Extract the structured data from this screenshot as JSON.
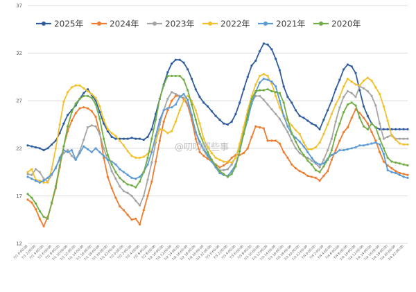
{
  "watermark": "@叨叨那些事",
  "chart_data": {
    "type": "line",
    "ylim": [
      12,
      37
    ],
    "yticks": [
      12,
      17,
      22,
      27,
      32,
      37
    ],
    "grid": true,
    "legend": "top",
    "x": [
      "7/1 0:00:00",
      "7/1 1:00:00",
      "7/1 2:00:00",
      "7/1 3:00:00",
      "7/1 4:00:00",
      "7/1 5:00:00",
      "7/1 6:00:00",
      "7/1 7:00:00",
      "7/1 8:00:00",
      "7/1 9:00:00",
      "7/1 10:00:00",
      "7/1 11:00:00",
      "7/1 12:00:00",
      "7/1 13:00:00",
      "7/1 14:00:00",
      "7/1 15:00:00",
      "7/1 16:00:00",
      "7/1 17:00:00",
      "7/1 18:00:00",
      "7/1 19:00:00",
      "7/1 20:00:00",
      "7/1 21:00:00",
      "7/1 22:00:00",
      "7/1 23:00:00",
      "7/2 0:00:00",
      "7/2 1:00:00",
      "7/2 2:00:00",
      "7/2 3:00:00",
      "7/2 4:00:00",
      "7/2 5:00:00",
      "7/2 6:00:00",
      "7/2 7:00:00",
      "7/2 8:00:00",
      "7/2 9:00:00",
      "7/2 10:00:00",
      "7/2 11:00:00",
      "7/2 12:00:00",
      "7/2 13:00:00",
      "7/2 14:00:00",
      "7/2 15:00:00",
      "7/2 16:00:00",
      "7/2 17:00:00",
      "7/2 18:00:00",
      "7/2 19:00:00",
      "7/2 20:00:00",
      "7/2 21:00:00",
      "7/2 22:00:00",
      "7/2 23:00:00",
      "7/3 0:00:00",
      "7/3 1:00:00",
      "7/3 2:00:00",
      "7/3 3:00:00",
      "7/3 4:00:00",
      "7/3 5:00:00",
      "7/3 6:00:00",
      "7/3 7:00:00",
      "7/3 8:00:00",
      "7/3 9:00:00",
      "7/3 10:00:00",
      "7/3 11:00:00",
      "7/3 12:00:00",
      "7/3 13:00:00",
      "7/3 14:00:00",
      "7/3 15:00:00",
      "7/3 16:00:00",
      "7/3 17:00:00",
      "7/3 18:00:00",
      "7/3 19:00:00",
      "7/3 20:00:00",
      "7/3 21:00:00",
      "7/3 22:00:00",
      "7/3 23:00:00",
      "7/4 0:00:00",
      "7/4 1:00:00",
      "7/4 2:00:00",
      "7/4 3:00:00",
      "7/4 4:00:00",
      "7/4 5:00:00",
      "7/4 6:00:00",
      "7/4 7:00:00",
      "7/4 8:00:00",
      "7/4 9:00:00",
      "7/4 10:00:00",
      "7/4 11:00:00",
      "7/4 12:00:00",
      "7/4 13:00:00",
      "7/4 14:00:00",
      "7/4 15:00:00",
      "7/4 16:00:00",
      "7/4 17:00:00",
      "7/4 18:00:00",
      "7/4 19:00:00",
      "7/4 20:00:00",
      "7/4 21:00:00",
      "7/4 22:00:00",
      "7/4 23:00:00"
    ],
    "series": [
      {
        "name": "2025年",
        "color": "#2e5c9e",
        "values": [
          22.3,
          22.2,
          22.1,
          22.0,
          21.8,
          22.0,
          22.4,
          22.8,
          23.6,
          24.6,
          25.5,
          26.0,
          26.5,
          27.2,
          27.8,
          28.2,
          27.6,
          27.0,
          25.8,
          24.6,
          23.8,
          23.2,
          23.0,
          23.0,
          23.0,
          23.0,
          23.1,
          23.0,
          23.0,
          22.9,
          23.2,
          24.0,
          25.6,
          27.2,
          28.7,
          30.0,
          30.9,
          31.3,
          31.3,
          31.0,
          30.3,
          29.3,
          28.2,
          27.4,
          26.8,
          26.4,
          25.9,
          25.4,
          25.0,
          24.6,
          24.5,
          24.8,
          25.6,
          26.8,
          28.2,
          29.5,
          30.7,
          31.2,
          32.2,
          33.0,
          32.9,
          32.4,
          31.4,
          30.2,
          28.5,
          27.4,
          26.8,
          26.0,
          25.4,
          25.2,
          24.9,
          24.6,
          24.4,
          24.0,
          25.0,
          26.0,
          27.0,
          28.2,
          29.2,
          30.3,
          30.8,
          30.6,
          29.9,
          28.1,
          26.4,
          25.4,
          24.6,
          24.2,
          24.0,
          24.0,
          24.0,
          24.0,
          24.0,
          24.0,
          24.0,
          24.0
        ]
      },
      {
        "name": "2024年",
        "color": "#ed7d31",
        "values": [
          16.6,
          16.3,
          15.6,
          14.6,
          13.8,
          14.8,
          16.2,
          17.8,
          20.0,
          22.2,
          23.8,
          24.9,
          25.7,
          26.2,
          26.3,
          26.2,
          25.9,
          25.3,
          23.6,
          21.0,
          19.0,
          17.8,
          16.8,
          15.9,
          15.5,
          15.0,
          14.5,
          14.6,
          14.0,
          15.5,
          17.0,
          18.5,
          20.6,
          22.8,
          24.8,
          26.0,
          27.0,
          27.5,
          27.5,
          27.2,
          26.5,
          25.0,
          23.0,
          21.6,
          21.2,
          20.9,
          20.6,
          20.3,
          20.0,
          20.2,
          20.5,
          21.0,
          21.3,
          21.3,
          21.5,
          22.0,
          23.2,
          24.3,
          24.2,
          24.1,
          22.8,
          22.8,
          22.8,
          22.5,
          21.6,
          21.0,
          20.3,
          19.9,
          19.6,
          19.4,
          19.1,
          19.0,
          18.9,
          18.6,
          19.1,
          19.6,
          20.8,
          21.8,
          22.8,
          23.7,
          24.2,
          25.2,
          26.1,
          25.7,
          25.2,
          24.6,
          23.7,
          22.8,
          21.6,
          20.6,
          20.2,
          19.9,
          19.6,
          19.4,
          19.3,
          19.2
        ]
      },
      {
        "name": "2023年",
        "color": "#a5a5a5",
        "values": [
          19.3,
          19.2,
          19.8,
          19.5,
          18.8,
          18.5,
          19.2,
          20.0,
          20.8,
          21.5,
          21.8,
          21.2,
          20.8,
          21.7,
          22.9,
          24.2,
          24.4,
          24.3,
          23.5,
          22.0,
          20.8,
          19.6,
          18.8,
          18.0,
          17.5,
          17.3,
          17.0,
          16.5,
          16.0,
          17.0,
          18.7,
          20.5,
          22.6,
          24.5,
          26.0,
          27.2,
          27.9,
          27.7,
          27.5,
          27.3,
          26.7,
          25.4,
          23.7,
          22.5,
          21.8,
          21.1,
          20.6,
          20.0,
          19.7,
          19.7,
          19.8,
          20.3,
          21.1,
          22.2,
          24.0,
          25.5,
          26.8,
          27.5,
          27.5,
          27.1,
          26.6,
          26.1,
          25.6,
          25.1,
          24.4,
          23.7,
          22.8,
          22.0,
          21.5,
          21.2,
          21.0,
          20.7,
          20.4,
          20.0,
          20.8,
          21.8,
          23.0,
          24.8,
          26.3,
          27.4,
          28.0,
          27.8,
          27.4,
          28.5,
          28.3,
          28.0,
          27.5,
          26.5,
          24.6,
          23.0,
          23.2,
          23.4,
          23.0,
          23.0,
          23.0,
          23.0
        ]
      },
      {
        "name": "2022年",
        "color": "#f2c12e",
        "values": [
          19.5,
          19.8,
          18.7,
          18.6,
          18.4,
          18.4,
          19.8,
          22.0,
          24.5,
          26.9,
          27.9,
          28.4,
          28.6,
          28.6,
          28.3,
          28.0,
          27.7,
          27.3,
          26.4,
          25.0,
          24.0,
          23.6,
          23.3,
          22.8,
          22.3,
          21.7,
          21.2,
          21.0,
          21.0,
          21.1,
          21.4,
          21.8,
          22.8,
          24.0,
          23.9,
          23.6,
          23.8,
          24.8,
          26.0,
          27.0,
          27.5,
          27.0,
          26.0,
          24.6,
          23.0,
          22.1,
          21.5,
          21.0,
          20.8,
          20.6,
          20.6,
          20.5,
          21.0,
          22.5,
          24.2,
          26.0,
          27.5,
          28.7,
          29.6,
          29.8,
          29.6,
          28.8,
          27.5,
          26.3,
          25.4,
          24.9,
          24.4,
          23.9,
          23.5,
          22.6,
          21.9,
          21.9,
          22.1,
          22.6,
          23.5,
          24.5,
          25.6,
          26.6,
          27.4,
          28.5,
          29.3,
          29.0,
          28.7,
          28.6,
          29.1,
          29.4,
          29.1,
          28.4,
          27.7,
          26.4,
          24.9,
          23.3,
          22.9,
          22.5,
          22.4,
          22.4
        ]
      },
      {
        "name": "2021年",
        "color": "#5b9bd5",
        "values": [
          19.0,
          18.8,
          18.6,
          18.4,
          18.6,
          18.9,
          19.3,
          19.9,
          21.0,
          21.8,
          21.6,
          21.8,
          20.8,
          21.5,
          22.2,
          21.9,
          21.6,
          22.0,
          21.6,
          21.2,
          20.8,
          20.6,
          20.3,
          19.8,
          19.5,
          19.2,
          18.9,
          18.8,
          19.0,
          19.5,
          20.3,
          21.6,
          23.3,
          25.0,
          26.0,
          26.2,
          26.3,
          26.6,
          27.4,
          27.7,
          27.1,
          25.5,
          23.7,
          22.7,
          21.9,
          21.3,
          20.6,
          20.0,
          19.4,
          19.2,
          19.1,
          19.6,
          20.3,
          21.7,
          23.5,
          25.0,
          26.7,
          27.9,
          28.9,
          29.3,
          29.2,
          29.0,
          28.5,
          27.0,
          25.4,
          24.3,
          23.5,
          23.1,
          22.7,
          22.2,
          21.6,
          21.0,
          20.5,
          20.3,
          20.4,
          20.9,
          21.3,
          21.5,
          21.8,
          21.8,
          21.9,
          22.0,
          22.1,
          22.3,
          22.3,
          22.4,
          22.5,
          22.6,
          22.4,
          21.4,
          19.7,
          19.5,
          19.4,
          19.2,
          19.0,
          18.9
        ]
      },
      {
        "name": "2020年",
        "color": "#70ad47",
        "values": [
          17.2,
          16.8,
          16.2,
          15.4,
          14.8,
          14.6,
          16.3,
          18.0,
          20.2,
          22.2,
          24.3,
          25.8,
          26.7,
          27.2,
          27.5,
          27.5,
          27.3,
          26.6,
          25.1,
          23.0,
          21.3,
          20.3,
          19.5,
          18.9,
          18.5,
          18.2,
          18.1,
          17.9,
          18.5,
          19.5,
          21.0,
          23.0,
          25.0,
          27.2,
          28.6,
          29.6,
          29.6,
          29.6,
          29.6,
          29.2,
          28.1,
          26.6,
          25.0,
          23.5,
          22.5,
          21.6,
          20.8,
          20.2,
          19.6,
          19.3,
          19.0,
          19.3,
          20.1,
          21.7,
          23.5,
          25.5,
          27.2,
          28.0,
          28.1,
          28.1,
          28.2,
          28.0,
          27.9,
          27.8,
          26.8,
          25.0,
          23.6,
          22.7,
          21.9,
          21.3,
          20.7,
          20.3,
          19.7,
          19.5,
          20.1,
          20.8,
          21.8,
          23.4,
          24.6,
          25.8,
          26.6,
          26.8,
          26.5,
          25.2,
          24.3,
          24.0,
          24.6,
          24.2,
          23.0,
          22.0,
          21.0,
          20.6,
          20.5,
          20.4,
          20.3,
          20.2
        ]
      }
    ]
  }
}
